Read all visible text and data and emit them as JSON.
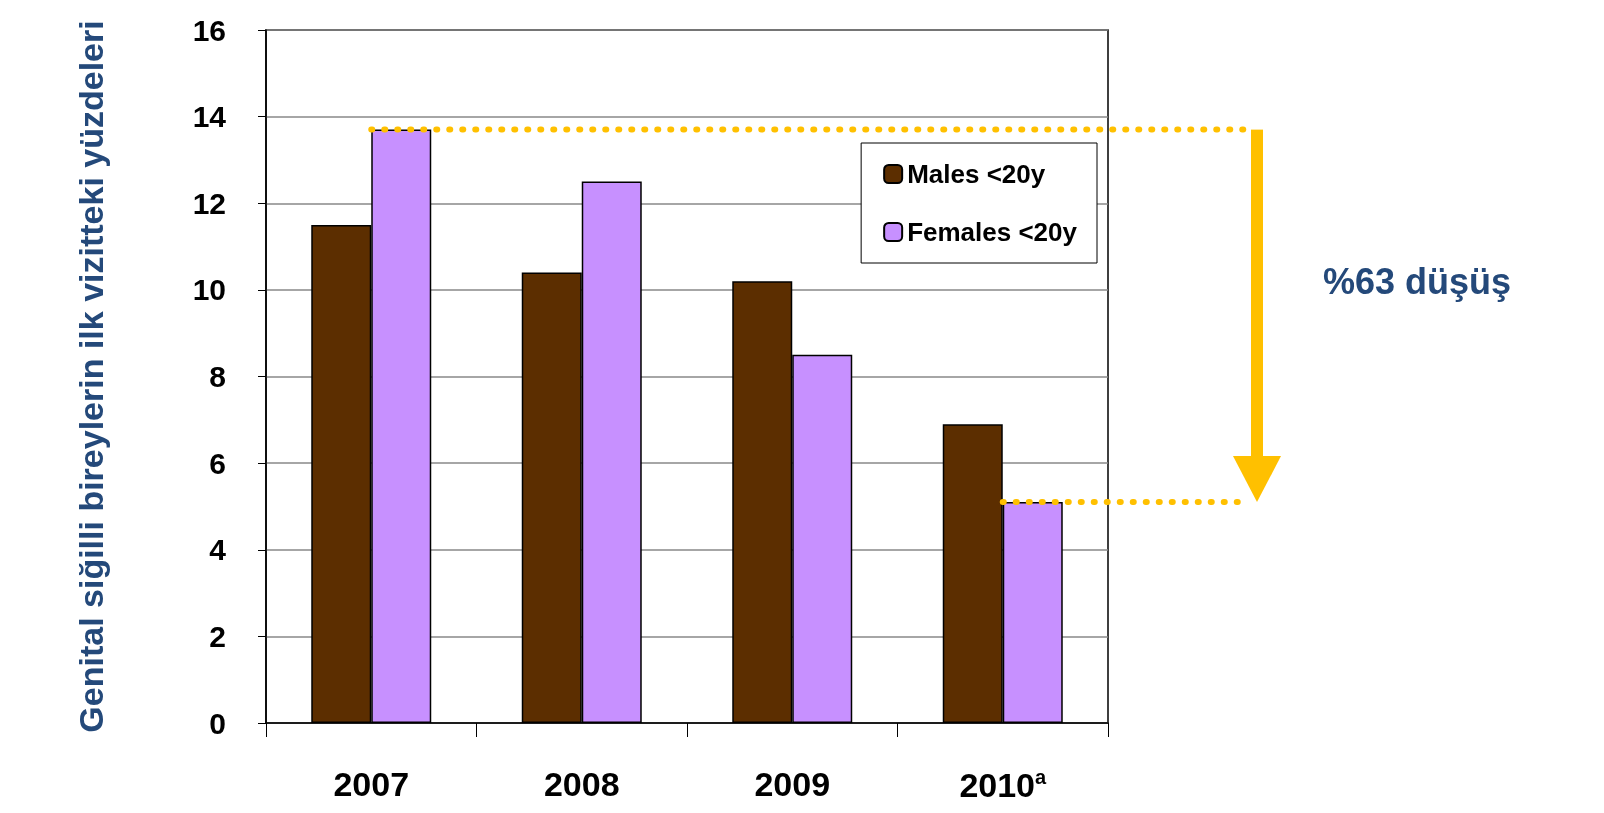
{
  "chart_data": {
    "type": "bar",
    "ylabel": "Genital siğilli bireylerin ilk vizitteki yüzdeleri",
    "categories": [
      "2007",
      "2008",
      "2009",
      "2010$^{a}$"
    ],
    "series": [
      {
        "name": "Males <20y",
        "color": "#5c2e00",
        "values": [
          11.5,
          10.4,
          10.2,
          6.9
        ]
      },
      {
        "name": "Females <20y",
        "color": "#c790ff",
        "values": [
          13.7,
          12.5,
          8.5,
          5.1
        ]
      }
    ],
    "ylim": [
      0,
      16
    ],
    "yticks": [
      0,
      2,
      4,
      6,
      8,
      10,
      12,
      14,
      16
    ],
    "grid": "y",
    "legend": "top right",
    "ref_lines": [
      {
        "axis": "y",
        "value": 13.7,
        "color": "#ffc000",
        "line_style": "dotted"
      },
      {
        "axis": "y",
        "value": 5.1,
        "color": "#ffc000",
        "line_style": "dotted"
      }
    ],
    "annotations": [
      "%63 düşüş"
    ]
  }
}
